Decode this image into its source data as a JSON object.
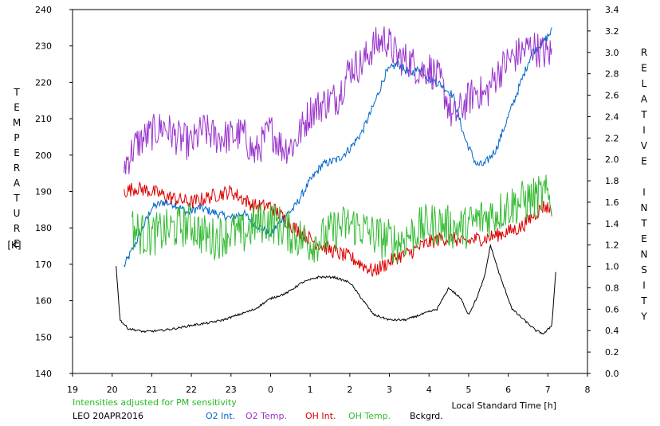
{
  "chart_data": {
    "type": "line",
    "ylabel_left": "TEMPERATURE",
    "ylabel_left_unit": "[K]",
    "ylabel_right": "RELATIVE INTENSITY",
    "xlabel": "Local Standard Time [h]",
    "note": "Intensities adjusted for PM sensitivity",
    "station_date": "LEO 20APR2016",
    "xlim": [
      19,
      32
    ],
    "x_tick_values": [
      19,
      20,
      21,
      22,
      23,
      24,
      25,
      26,
      27,
      28,
      29,
      30,
      31,
      32
    ],
    "x_tick_labels": [
      "19",
      "20",
      "21",
      "22",
      "23",
      "0",
      "1",
      "2",
      "3",
      "4",
      "5",
      "6",
      "7",
      "8"
    ],
    "ylim_left": [
      140,
      240
    ],
    "y_left_ticks": [
      "140",
      "150",
      "160",
      "170",
      "180",
      "190",
      "200",
      "210",
      "220",
      "230",
      "240"
    ],
    "ylim_right": [
      0,
      3.4
    ],
    "y_right_ticks": [
      "0.0",
      "0.2",
      "0.4",
      "0.6",
      "0.8",
      "1.0",
      "1.2",
      "1.4",
      "1.6",
      "1.8",
      "2.0",
      "2.2",
      "2.4",
      "2.6",
      "2.8",
      "3.0",
      "3.2",
      "3.4"
    ],
    "grid": false,
    "series": [
      {
        "name": "O2 Int.",
        "color": "#0066cc",
        "axis": "right",
        "noise": 0.04,
        "x": [
          20.3,
          20.5,
          20.7,
          21.0,
          21.3,
          21.6,
          21.9,
          22.2,
          22.6,
          23.0,
          23.3,
          23.6,
          24.0,
          24.3,
          24.6,
          25.0,
          25.3,
          25.7,
          26.0,
          26.3,
          26.6,
          26.9,
          27.2,
          27.5,
          27.8,
          28.0,
          28.3,
          28.6,
          28.9,
          29.2,
          29.4,
          29.7,
          30.0,
          30.3,
          30.6,
          30.9,
          31.1
        ],
        "y": [
          1.0,
          1.15,
          1.3,
          1.55,
          1.6,
          1.58,
          1.5,
          1.55,
          1.5,
          1.45,
          1.5,
          1.4,
          1.3,
          1.45,
          1.55,
          1.8,
          1.95,
          2.0,
          2.1,
          2.25,
          2.5,
          2.8,
          2.9,
          2.8,
          2.85,
          2.75,
          2.7,
          2.6,
          2.2,
          1.95,
          1.95,
          2.1,
          2.4,
          2.7,
          3.0,
          3.1,
          3.2
        ]
      },
      {
        "name": "O2 Temp.",
        "color": "#9933cc",
        "axis": "left",
        "noise": 5,
        "x": [
          20.3,
          20.6,
          21.0,
          21.3,
          21.6,
          22.0,
          22.3,
          22.6,
          23.0,
          23.3,
          23.6,
          24.0,
          24.3,
          24.6,
          25.0,
          25.3,
          25.7,
          26.0,
          26.3,
          26.6,
          26.9,
          27.2,
          27.5,
          27.8,
          28.0,
          28.3,
          28.6,
          28.9,
          29.2,
          29.4,
          29.7,
          30.0,
          30.3,
          30.6,
          30.9,
          31.1
        ],
        "y": [
          197,
          203,
          206,
          208,
          205,
          203,
          207,
          205,
          205,
          206,
          200,
          207,
          202,
          203,
          212,
          214,
          216,
          224,
          225,
          230,
          232,
          227,
          226,
          223,
          224,
          220,
          210,
          214,
          218,
          216,
          222,
          226,
          228,
          230,
          228,
          228
        ]
      },
      {
        "name": "OH Int.",
        "color": "#dd0000",
        "axis": "left",
        "noise": 2,
        "x": [
          20.3,
          20.6,
          21.0,
          21.3,
          21.6,
          22.0,
          22.3,
          22.6,
          23.0,
          23.3,
          23.6,
          24.0,
          24.3,
          24.6,
          25.0,
          25.3,
          25.7,
          26.0,
          26.3,
          26.6,
          26.9,
          27.2,
          27.5,
          27.8,
          28.0,
          28.3,
          28.6,
          28.9,
          29.2,
          29.4,
          29.7,
          30.0,
          30.3,
          30.6,
          30.9,
          31.1
        ],
        "y": [
          190,
          191,
          190,
          189,
          188,
          187,
          188,
          189,
          190,
          188,
          186,
          186,
          183,
          180,
          177,
          175,
          173,
          172,
          170,
          168,
          170,
          172,
          173,
          175,
          176,
          177,
          177,
          176,
          177,
          177,
          178,
          179,
          180,
          183,
          186,
          185
        ]
      },
      {
        "name": "OH Temp.",
        "color": "#33bb33",
        "axis": "left",
        "noise": 6,
        "x": [
          20.5,
          20.8,
          21.0,
          21.3,
          21.6,
          22.0,
          22.3,
          22.6,
          23.0,
          23.3,
          23.6,
          24.0,
          24.3,
          24.6,
          25.0,
          25.3,
          25.7,
          26.0,
          26.3,
          26.6,
          26.9,
          27.2,
          27.5,
          27.8,
          28.0,
          28.3,
          28.6,
          28.9,
          29.2,
          29.4,
          29.7,
          30.0,
          30.3,
          30.6,
          30.9,
          31.1
        ],
        "y": [
          180,
          178,
          178,
          179,
          180,
          181,
          178,
          177,
          179,
          178,
          181,
          182,
          180,
          178,
          176,
          177,
          180,
          181,
          180,
          178,
          177,
          176,
          178,
          180,
          181,
          181,
          180,
          180,
          182,
          183,
          184,
          186,
          187,
          188,
          189,
          188
        ]
      },
      {
        "name": "Bckgrd.",
        "color": "#000000",
        "axis": "right",
        "noise": 0.01,
        "x": [
          20.1,
          20.2,
          20.4,
          20.8,
          21.2,
          21.6,
          22.0,
          22.4,
          22.8,
          23.2,
          23.6,
          24.0,
          24.4,
          24.8,
          25.2,
          25.6,
          26.0,
          26.3,
          26.6,
          27.0,
          27.4,
          27.8,
          28.2,
          28.5,
          28.8,
          29.0,
          29.2,
          29.4,
          29.55,
          29.8,
          30.1,
          30.4,
          30.7,
          30.9,
          31.1,
          31.2
        ],
        "y": [
          1.0,
          0.5,
          0.42,
          0.39,
          0.4,
          0.42,
          0.45,
          0.47,
          0.5,
          0.55,
          0.6,
          0.7,
          0.75,
          0.85,
          0.9,
          0.9,
          0.85,
          0.7,
          0.55,
          0.5,
          0.5,
          0.55,
          0.6,
          0.8,
          0.7,
          0.55,
          0.7,
          0.9,
          1.2,
          0.9,
          0.6,
          0.5,
          0.4,
          0.37,
          0.45,
          0.95
        ]
      }
    ]
  }
}
